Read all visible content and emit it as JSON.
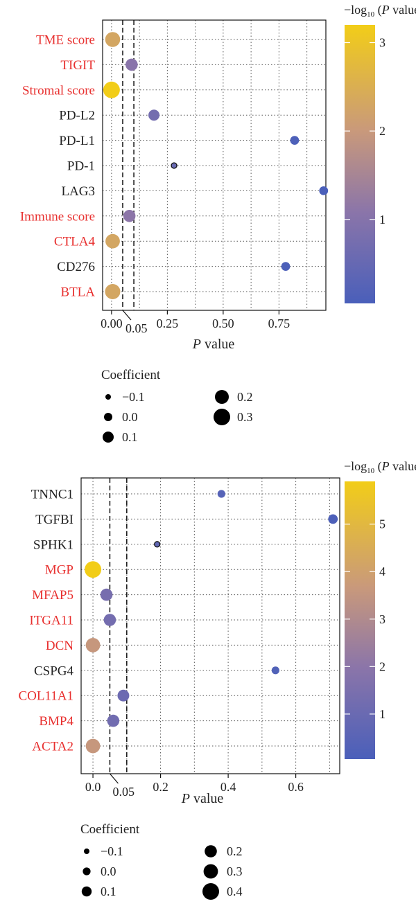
{
  "colors": {
    "significant_label": "#e8302f",
    "normal_label": "#222222",
    "scale_low": "#4a5fba",
    "scale_mid": "#c9997b",
    "scale_high": "#f2cd18"
  },
  "chart_data": [
    {
      "type": "scatter",
      "title": "",
      "xlabel": "P value",
      "ylabel": "",
      "xlim": [
        -0.04,
        0.96
      ],
      "x_ticks": [
        "0.00",
        "0.25",
        "0.50",
        "0.75"
      ],
      "x_tick_values": [
        0,
        0.25,
        0.5,
        0.75
      ],
      "reference_lines": [
        {
          "x": 0.05,
          "label": "0.05"
        },
        {
          "x": 0.1,
          "label": ""
        }
      ],
      "color_label_prefix": "−log",
      "color_label_sub": "10",
      "color_label_suffix": " (P value)",
      "color_range": [
        0.05,
        3.2
      ],
      "color_ticks": [
        "1",
        "2",
        "3"
      ],
      "color_tick_values": [
        1,
        2,
        3
      ],
      "size_legend_title": "Coefficient",
      "size_legend": [
        {
          "label": "−0.1",
          "value": -0.1
        },
        {
          "label": "0.0",
          "value": 0.0
        },
        {
          "label": "0.1",
          "value": 0.1
        },
        {
          "label": "0.2",
          "value": 0.2
        },
        {
          "label": "0.3",
          "value": 0.3
        }
      ],
      "size_range": [
        -0.1,
        0.3
      ],
      "grid": true,
      "points": [
        {
          "label": "TME score",
          "p": 0.005,
          "neglog": 2.3,
          "coef": 0.24,
          "significant": true
        },
        {
          "label": "TIGIT",
          "p": 0.09,
          "neglog": 1.05,
          "coef": 0.14,
          "significant": true
        },
        {
          "label": "Stromal score",
          "p": 0.0,
          "neglog": 3.2,
          "coef": 0.3,
          "significant": true
        },
        {
          "label": "PD-L2",
          "p": 0.19,
          "neglog": 0.72,
          "coef": 0.1,
          "significant": false
        },
        {
          "label": "PD-L1",
          "p": 0.82,
          "neglog": 0.09,
          "coef": 0.02,
          "significant": false
        },
        {
          "label": "PD-1",
          "p": 0.28,
          "neglog": 0.55,
          "coef": -0.1,
          "significant": false
        },
        {
          "label": "LAG3",
          "p": 0.95,
          "neglog": 0.02,
          "coef": 0.02,
          "significant": false
        },
        {
          "label": "Immune score",
          "p": 0.08,
          "neglog": 1.1,
          "coef": 0.14,
          "significant": true
        },
        {
          "label": "CTLA4",
          "p": 0.005,
          "neglog": 2.3,
          "coef": 0.22,
          "significant": true
        },
        {
          "label": "CD276",
          "p": 0.78,
          "neglog": 0.1,
          "coef": 0.02,
          "significant": false
        },
        {
          "label": "BTLA",
          "p": 0.005,
          "neglog": 2.3,
          "coef": 0.25,
          "significant": true
        }
      ]
    },
    {
      "type": "scatter",
      "title": "",
      "xlabel": "P value",
      "ylabel": "",
      "xlim": [
        -0.035,
        0.73
      ],
      "x_ticks": [
        "0.0",
        "0.2",
        "0.4",
        "0.6"
      ],
      "x_tick_values": [
        0,
        0.2,
        0.4,
        0.6
      ],
      "reference_lines": [
        {
          "x": 0.05,
          "label": "0.05"
        },
        {
          "x": 0.1,
          "label": ""
        }
      ],
      "color_label_prefix": "−log",
      "color_label_sub": "10",
      "color_label_suffix": " (P value)",
      "color_range": [
        0.05,
        5.9
      ],
      "color_ticks": [
        "1",
        "2",
        "3",
        "4",
        "5"
      ],
      "color_tick_values": [
        1,
        2,
        3,
        4,
        5
      ],
      "size_legend_title": "Coefficient",
      "size_legend": [
        {
          "label": "−0.1",
          "value": -0.1
        },
        {
          "label": "0.0",
          "value": 0.0
        },
        {
          "label": "0.1",
          "value": 0.1
        },
        {
          "label": "0.2",
          "value": 0.2
        },
        {
          "label": "0.3",
          "value": 0.3
        },
        {
          "label": "0.4",
          "value": 0.4
        }
      ],
      "size_range": [
        -0.1,
        0.4
      ],
      "grid": true,
      "points": [
        {
          "label": "TNNC1",
          "p": 0.38,
          "neglog": 0.4,
          "coef": 0.0,
          "significant": false
        },
        {
          "label": "TGFBI",
          "p": 0.71,
          "neglog": 0.15,
          "coef": 0.08,
          "significant": false
        },
        {
          "label": "SPHK1",
          "p": 0.19,
          "neglog": 0.72,
          "coef": -0.1,
          "significant": false
        },
        {
          "label": "MGP",
          "p": 0.0,
          "neglog": 5.9,
          "coef": 0.4,
          "significant": true
        },
        {
          "label": "MFAP5",
          "p": 0.04,
          "neglog": 1.4,
          "coef": 0.2,
          "significant": true
        },
        {
          "label": "ITGA11",
          "p": 0.05,
          "neglog": 1.3,
          "coef": 0.2,
          "significant": true
        },
        {
          "label": "DCN",
          "p": 0.0,
          "neglog": 3.6,
          "coef": 0.3,
          "significant": true
        },
        {
          "label": "CSPG4",
          "p": 0.54,
          "neglog": 0.27,
          "coef": 0.0,
          "significant": false
        },
        {
          "label": "COL11A1",
          "p": 0.09,
          "neglog": 1.05,
          "coef": 0.18,
          "significant": true
        },
        {
          "label": "BMP4",
          "p": 0.06,
          "neglog": 1.2,
          "coef": 0.2,
          "significant": true
        },
        {
          "label": "ACTA2",
          "p": 0.0,
          "neglog": 3.6,
          "coef": 0.3,
          "significant": true
        }
      ]
    }
  ]
}
